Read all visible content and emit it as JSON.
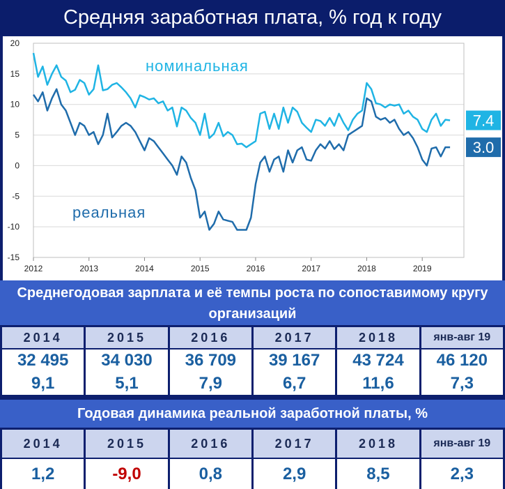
{
  "title": "Средняя заработная плата, % год к году",
  "colors": {
    "nominal": "#1fb4e4",
    "real": "#1f6cab",
    "header_bg": "#3960c8",
    "negative": "#c00000"
  },
  "chart_data": {
    "type": "line",
    "title": "Средняя заработная плата, % год к году",
    "xlabel": "",
    "ylabel": "",
    "xlim": [
      2012.0,
      2019.75
    ],
    "ylim": [
      -15,
      20
    ],
    "yticks": [
      20,
      15,
      10,
      5,
      0,
      -5,
      -10,
      -15
    ],
    "xticks": [
      "2012",
      "2013",
      "2014",
      "2015",
      "2016",
      "2017",
      "2018",
      "2019"
    ],
    "grid": true,
    "series": [
      {
        "name": "номинальная",
        "end_label": "7.4",
        "start": "2012-01",
        "values": [
          18.4,
          14.5,
          16.2,
          13.2,
          15.0,
          16.4,
          14.5,
          13.9,
          12.0,
          12.4,
          14.0,
          13.5,
          11.6,
          12.5,
          16.4,
          12.3,
          12.5,
          13.2,
          13.5,
          12.8,
          12.0,
          11.0,
          9.5,
          11.5,
          11.2,
          10.8,
          11.0,
          10.2,
          10.5,
          9.0,
          9.5,
          6.4,
          9.5,
          9.0,
          7.8,
          7.0,
          5.0,
          8.5,
          4.5,
          5.2,
          7.0,
          4.8,
          5.5,
          5.0,
          3.5,
          3.6,
          3.0,
          3.5,
          4.0,
          8.5,
          8.8,
          6.0,
          8.5,
          6.0,
          9.5,
          7.0,
          9.5,
          8.8,
          7.0,
          6.2,
          5.5,
          7.5,
          7.3,
          6.5,
          7.8,
          6.5,
          8.5,
          7.0,
          5.8,
          7.5,
          8.5,
          9.0,
          13.5,
          12.5,
          10.2,
          10.0,
          9.5,
          10.0,
          9.8,
          10.0,
          8.5,
          9.0,
          8.0,
          7.5,
          6.0,
          5.5,
          7.5,
          8.5,
          6.5,
          7.5,
          7.4
        ]
      },
      {
        "name": "реальная",
        "end_label": "3.0",
        "start": "2012-01",
        "values": [
          11.6,
          10.5,
          12.0,
          9.0,
          11.0,
          12.5,
          10.0,
          9.0,
          7.0,
          5.0,
          7.0,
          6.5,
          5.0,
          5.5,
          3.5,
          5.0,
          8.5,
          4.6,
          5.5,
          6.5,
          7.0,
          6.5,
          5.5,
          4.0,
          2.5,
          4.5,
          4.0,
          3.0,
          2.0,
          1.0,
          0.0,
          -1.5,
          1.5,
          0.5,
          -2.0,
          -4.0,
          -8.5,
          -7.5,
          -10.5,
          -9.5,
          -7.5,
          -8.8,
          -9.0,
          -9.2,
          -10.5,
          -10.5,
          -10.5,
          -8.5,
          -3.0,
          0.5,
          1.5,
          -1.0,
          1.0,
          1.5,
          -1.0,
          2.5,
          0.5,
          2.5,
          3.0,
          1.0,
          0.8,
          2.5,
          3.5,
          2.8,
          4.0,
          2.7,
          3.5,
          2.5,
          5.0,
          5.5,
          6.0,
          6.5,
          11.0,
          10.5,
          8.0,
          7.5,
          7.8,
          7.0,
          7.5,
          6.0,
          5.0,
          5.5,
          4.5,
          3.0,
          1.0,
          0.0,
          2.8,
          3.0,
          1.5,
          3.0,
          3.0
        ]
      }
    ]
  },
  "table1": {
    "header": "Среднегодовая зарплата и её темпы роста по сопоставимому кругу организаций",
    "years": [
      "2014",
      "2015",
      "2016",
      "2017",
      "2018",
      "янв-авг 19"
    ],
    "amounts": [
      "32 495",
      "34 030",
      "36 709",
      "39 167",
      "43 724",
      "46 120"
    ],
    "growth": [
      "9,1",
      "5,1",
      "7,9",
      "6,7",
      "11,6",
      "7,3"
    ]
  },
  "table2": {
    "header": "Годовая динамика реальной заработной платы, %",
    "years": [
      "2014",
      "2015",
      "2016",
      "2017",
      "2018",
      "янв-авг 19"
    ],
    "values": [
      "1,2",
      "-9,0",
      "0,8",
      "2,9",
      "8,5",
      "2,3"
    ]
  }
}
